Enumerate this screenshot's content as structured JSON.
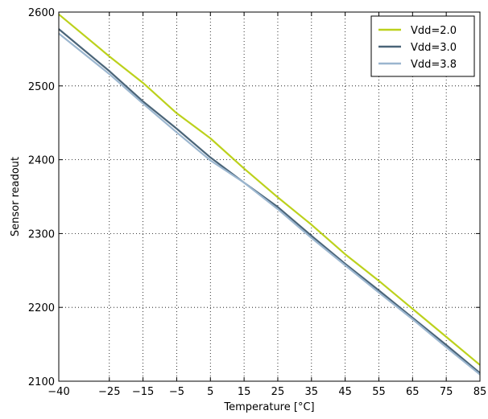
{
  "chart_data": {
    "type": "line",
    "title": "",
    "xlabel": "Temperature [°C]",
    "ylabel": "Sensor readout",
    "xlim": [
      -40,
      85
    ],
    "ylim": [
      2100,
      2600
    ],
    "xticks": [
      -40,
      -25,
      -15,
      -5,
      5,
      15,
      25,
      35,
      45,
      55,
      65,
      75,
      85
    ],
    "xtick_labels": [
      "−40",
      "−25",
      "−15",
      "−5",
      "5",
      "15",
      "25",
      "35",
      "45",
      "55",
      "65",
      "75",
      "85"
    ],
    "yticks": [
      2100,
      2200,
      2300,
      2400,
      2500,
      2600
    ],
    "ytick_labels": [
      "2100",
      "2200",
      "2300",
      "2400",
      "2500",
      "2600"
    ],
    "grid": true,
    "legend_position": "top-right",
    "x": [
      -40,
      -25,
      -15,
      -5,
      5,
      15,
      25,
      35,
      45,
      55,
      65,
      75,
      85
    ],
    "series": [
      {
        "name": "Vdd=2.0",
        "color": "#bcd11c",
        "values": [
          2597,
          2540,
          2504,
          2463,
          2429,
          2388,
          2349,
          2312,
          2272,
          2236,
          2198,
          2160,
          2122
        ]
      },
      {
        "name": "Vdd=3.0",
        "color": "#4a6478",
        "values": [
          2577,
          2520,
          2479,
          2442,
          2403,
          2369,
          2336,
          2297,
          2259,
          2223,
          2186,
          2149,
          2111
        ]
      },
      {
        "name": "Vdd=3.8",
        "color": "#9bb6cf",
        "values": [
          2571,
          2516,
          2476,
          2437,
          2399,
          2369,
          2333,
          2294,
          2257,
          2220,
          2184,
          2146,
          2109
        ]
      }
    ]
  }
}
